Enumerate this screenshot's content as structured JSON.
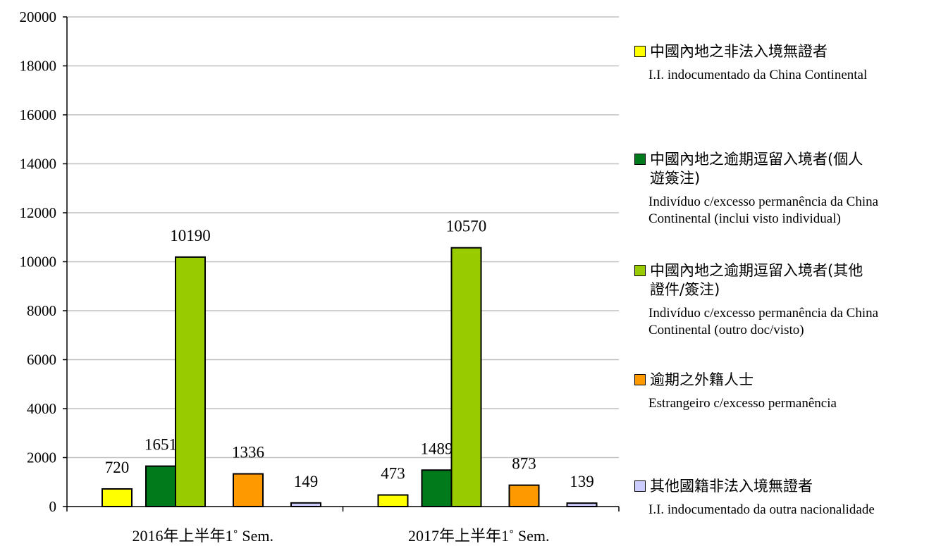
{
  "chart_data": {
    "type": "bar",
    "categories": [
      "2016年上半年1˚ Sem.",
      "2017年上半年1˚ Sem."
    ],
    "series": [
      {
        "name": "中國內地之非法入境無證者 / I.I. indocumentado da China Continental",
        "color": "#ffff00",
        "values": [
          720,
          473
        ]
      },
      {
        "name": "中國內地之逾期逗留入境者(個人遊簽注) / Indivíduo c/excesso permanência da China Continental (inclui visto individual)",
        "color": "#007a1a",
        "values": [
          1651,
          1489
        ]
      },
      {
        "name": "中國內地之逾期逗留入境者(其他證件/簽注) / Indivíduo c/excesso permanência da China Continental (outro doc/visto)",
        "color": "#99cc00",
        "values": [
          10190,
          10570
        ]
      },
      {
        "name": "逾期之外籍人士 / Estrangeiro c/excesso permanência",
        "color": "#ff9900",
        "values": [
          1336,
          873
        ]
      },
      {
        "name": "其他國籍非法入境無證者 / I.I. indocumentado da outra nacionalidade",
        "color": "#ccccff",
        "values": [
          149,
          139
        ]
      }
    ],
    "ylim": [
      0,
      20000
    ],
    "ytick_step": 2000,
    "yticks": [
      "0",
      "2000",
      "4000",
      "6000",
      "8000",
      "10000",
      "12000",
      "14000",
      "16000",
      "18000",
      "20000"
    ],
    "grid": true,
    "legend_position": "right",
    "title": "",
    "xlabel": "",
    "ylabel": ""
  },
  "legend": [
    {
      "zh": "中國內地之非法入境無證者",
      "pt": "I.I. indocumentado da China Continental",
      "color": "#ffff00"
    },
    {
      "zh": "中國內地之逾期逗留入境者(個人\n遊簽注)",
      "pt": "Indivíduo c/excesso permanência da China Continental (inclui visto individual)",
      "color": "#007a1a"
    },
    {
      "zh": "中國內地之逾期逗留入境者(其他\n證件/簽注)",
      "pt": "Indivíduo c/excesso permanência da China Continental (outro doc/visto)",
      "color": "#99cc00"
    },
    {
      "zh": "逾期之外籍人士",
      "pt": "Estrangeiro c/excesso permanência",
      "color": "#ff9900"
    },
    {
      "zh": "其他國籍非法入境無證者",
      "pt": "I.I. indocumentado da outra nacionalidade",
      "color": "#ccccff"
    }
  ]
}
